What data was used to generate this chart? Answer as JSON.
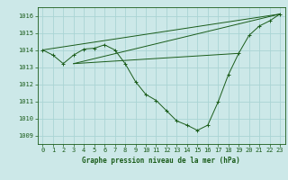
{
  "title": "Graphe pression niveau de la mer (hPa)",
  "bg_color": "#cce8e8",
  "line_color": "#1a5c1a",
  "grid_color": "#aad4d4",
  "xlim": [
    -0.5,
    23.5
  ],
  "ylim": [
    1008.5,
    1016.5
  ],
  "yticks": [
    1009,
    1010,
    1011,
    1012,
    1013,
    1014,
    1015,
    1016
  ],
  "xticks": [
    0,
    1,
    2,
    3,
    4,
    5,
    6,
    7,
    8,
    9,
    10,
    11,
    12,
    13,
    14,
    15,
    16,
    17,
    18,
    19,
    20,
    21,
    22,
    23
  ],
  "series": [
    [
      0,
      1014.0
    ],
    [
      1,
      1013.7
    ],
    [
      2,
      1013.2
    ],
    [
      3,
      1013.7
    ],
    [
      4,
      1014.05
    ],
    [
      5,
      1014.1
    ],
    [
      6,
      1014.3
    ],
    [
      7,
      1014.0
    ],
    [
      8,
      1013.2
    ],
    [
      9,
      1012.15
    ],
    [
      10,
      1011.4
    ],
    [
      11,
      1011.05
    ],
    [
      12,
      1010.45
    ],
    [
      13,
      1009.85
    ],
    [
      14,
      1009.6
    ],
    [
      15,
      1009.3
    ],
    [
      16,
      1009.6
    ],
    [
      17,
      1010.95
    ],
    [
      18,
      1012.55
    ],
    [
      19,
      1013.8
    ],
    [
      20,
      1014.85
    ],
    [
      21,
      1015.4
    ],
    [
      22,
      1015.7
    ],
    [
      23,
      1016.1
    ]
  ],
  "extra_lines": [
    [
      [
        0,
        1014.0
      ],
      [
        23,
        1016.1
      ]
    ],
    [
      [
        3,
        1013.2
      ],
      [
        23,
        1016.1
      ]
    ],
    [
      [
        3,
        1013.2
      ],
      [
        19,
        1013.8
      ]
    ]
  ],
  "xlabel_fontsize": 5.5,
  "tick_fontsize": 5.0,
  "linewidth": 0.7,
  "markersize": 2.5
}
